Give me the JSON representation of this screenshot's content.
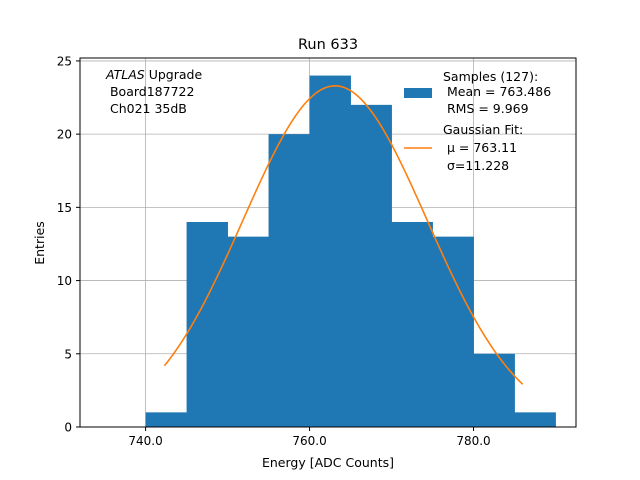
{
  "chart_data": {
    "type": "bar",
    "title": "Run 633",
    "xlabel": "Energy [ADC Counts]",
    "ylabel": "Entries",
    "xlim": [
      732,
      792.5
    ],
    "ylim": [
      0,
      25.2
    ],
    "grid": true,
    "x_ticks": [
      740,
      760,
      780
    ],
    "x_tick_labels": [
      "740.0",
      "760.0",
      "780.0"
    ],
    "y_ticks": [
      0,
      5,
      10,
      15,
      20,
      25
    ],
    "y_tick_labels": [
      "0",
      "5",
      "10",
      "15",
      "20",
      "25"
    ],
    "bin_edges": [
      740,
      745,
      750,
      755,
      760,
      765,
      770,
      775,
      780,
      785,
      790
    ],
    "counts": [
      1,
      14,
      13,
      20,
      24,
      22,
      14,
      13,
      5,
      1
    ],
    "fit": {
      "amplitude": 23.3,
      "mu": 763.11,
      "sigma": 11.228,
      "x_range": [
        742.3,
        786.0
      ]
    },
    "colors": {
      "hist": "#1f77b4",
      "fit": "#ff7f0e",
      "grid": "#b0b0b0"
    },
    "annotation": [
      "ATLAS",
      " Upgrade",
      " Board187722",
      " Ch021 35dB"
    ],
    "legend": {
      "position": "top-right",
      "hist_label": [
        "Samples (127):",
        " Mean = 763.486",
        " RMS = 9.969"
      ],
      "fit_label": [
        "Gaussian Fit:",
        " μ = 763.11",
        " σ=11.228"
      ]
    }
  }
}
